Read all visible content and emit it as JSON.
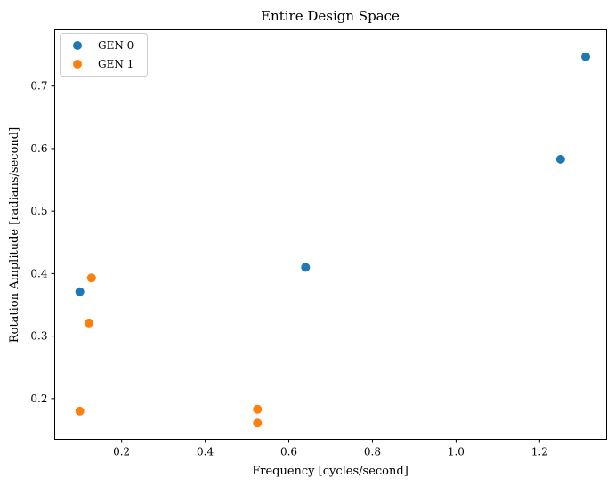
{
  "chart_data": {
    "type": "scatter",
    "title": "Entire Design Space",
    "xlabel": "Frequency [cycles/second]",
    "ylabel": "Rotation Amplitude [radians/second]",
    "xlim": [
      0.04,
      1.36
    ],
    "ylim": [
      0.135,
      0.79
    ],
    "xticks": [
      "0.2",
      "0.4",
      "0.6",
      "0.8",
      "1.0",
      "1.2"
    ],
    "yticks": [
      "0.2",
      "0.3",
      "0.4",
      "0.5",
      "0.6",
      "0.7"
    ],
    "grid": false,
    "legend_position": "top-left",
    "series": [
      {
        "name": "GEN 0",
        "color": "#1f77b4",
        "points": [
          {
            "x": 0.1,
            "y": 0.371
          },
          {
            "x": 0.64,
            "y": 0.41
          },
          {
            "x": 1.25,
            "y": 0.583
          },
          {
            "x": 1.31,
            "y": 0.747
          }
        ]
      },
      {
        "name": "GEN 1",
        "color": "#ff7f0e",
        "points": [
          {
            "x": 0.128,
            "y": 0.393
          },
          {
            "x": 0.122,
            "y": 0.321
          },
          {
            "x": 0.1,
            "y": 0.18
          },
          {
            "x": 0.525,
            "y": 0.183
          },
          {
            "x": 0.525,
            "y": 0.161
          }
        ]
      }
    ]
  }
}
